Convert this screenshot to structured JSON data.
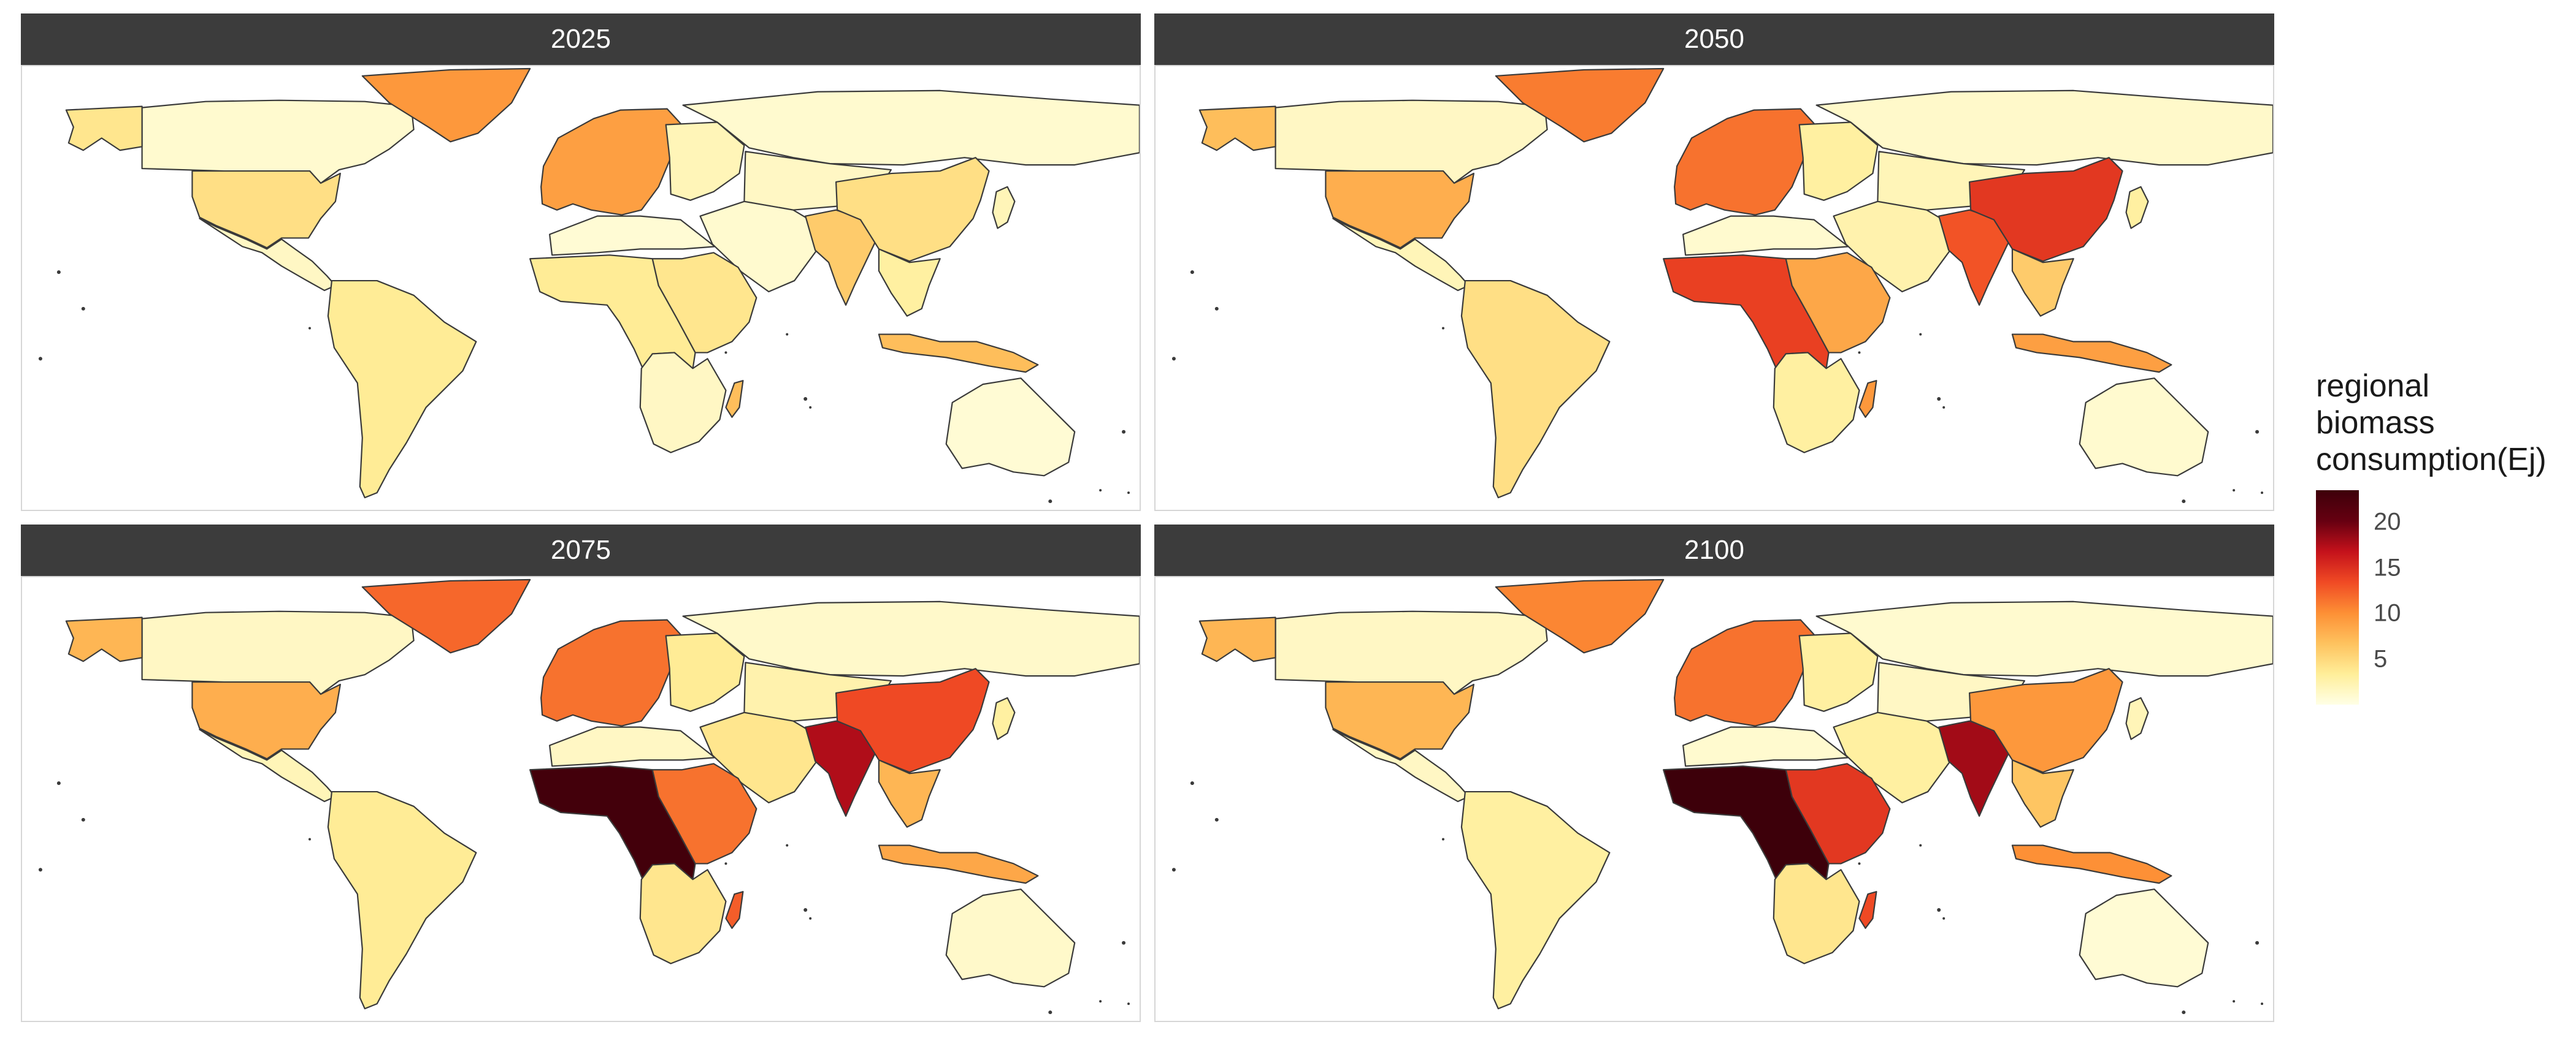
{
  "facets": [
    "2025",
    "2050",
    "2075",
    "2100"
  ],
  "legend": {
    "title_lines": [
      "regional",
      "biomass",
      "consumption(Ej)"
    ],
    "ticks": [
      5,
      10,
      15,
      20
    ],
    "range": [
      0,
      23.5
    ],
    "colors": [
      "#ffffe6",
      "#ffee99",
      "#fec25e",
      "#fd8f35",
      "#f04a24",
      "#c4111b",
      "#660011",
      "#3d000a"
    ]
  },
  "chart_data": {
    "type": "choropleth",
    "value_label": "regional biomass consumption(Ej)",
    "regions": [
      "Canada",
      "Alaska",
      "Greenland",
      "USA",
      "Mexico & Central America",
      "South America",
      "Western Europe",
      "Eastern Europe",
      "Russia",
      "Central Asia",
      "Middle East",
      "North Africa",
      "Sub-Saharan West/Central Africa",
      "East Africa",
      "Southern Africa",
      "Madagascar",
      "India",
      "China",
      "Southeast Asia",
      "Japan",
      "Indonesia & Oceania",
      "Australia"
    ],
    "values": {
      "2025": [
        1.0,
        4.0,
        9.5,
        4.5,
        1.5,
        3.5,
        9.0,
        2.0,
        1.0,
        1.5,
        1.0,
        0.8,
        3.5,
        4.0,
        1.5,
        7.0,
        6.0,
        4.5,
        3.0,
        2.0,
        7.0,
        0.8
      ],
      "2050": [
        1.5,
        7.0,
        11.0,
        8.0,
        2.0,
        4.5,
        11.5,
        3.0,
        1.2,
        2.0,
        2.5,
        1.0,
        14.0,
        8.5,
        3.0,
        9.5,
        13.0,
        14.5,
        6.0,
        3.0,
        9.0,
        1.0
      ],
      "2075": [
        1.5,
        7.5,
        12.0,
        8.0,
        2.0,
        3.5,
        11.5,
        3.5,
        1.2,
        2.5,
        4.0,
        1.5,
        23.0,
        11.5,
        4.0,
        12.5,
        17.5,
        13.5,
        7.5,
        3.0,
        8.5,
        1.2
      ],
      "2100": [
        1.5,
        7.5,
        10.5,
        7.5,
        1.5,
        3.0,
        11.5,
        3.0,
        1.0,
        1.5,
        3.0,
        1.0,
        23.5,
        14.5,
        4.0,
        13.5,
        18.0,
        9.5,
        6.5,
        2.0,
        10.0,
        0.8
      ]
    }
  }
}
